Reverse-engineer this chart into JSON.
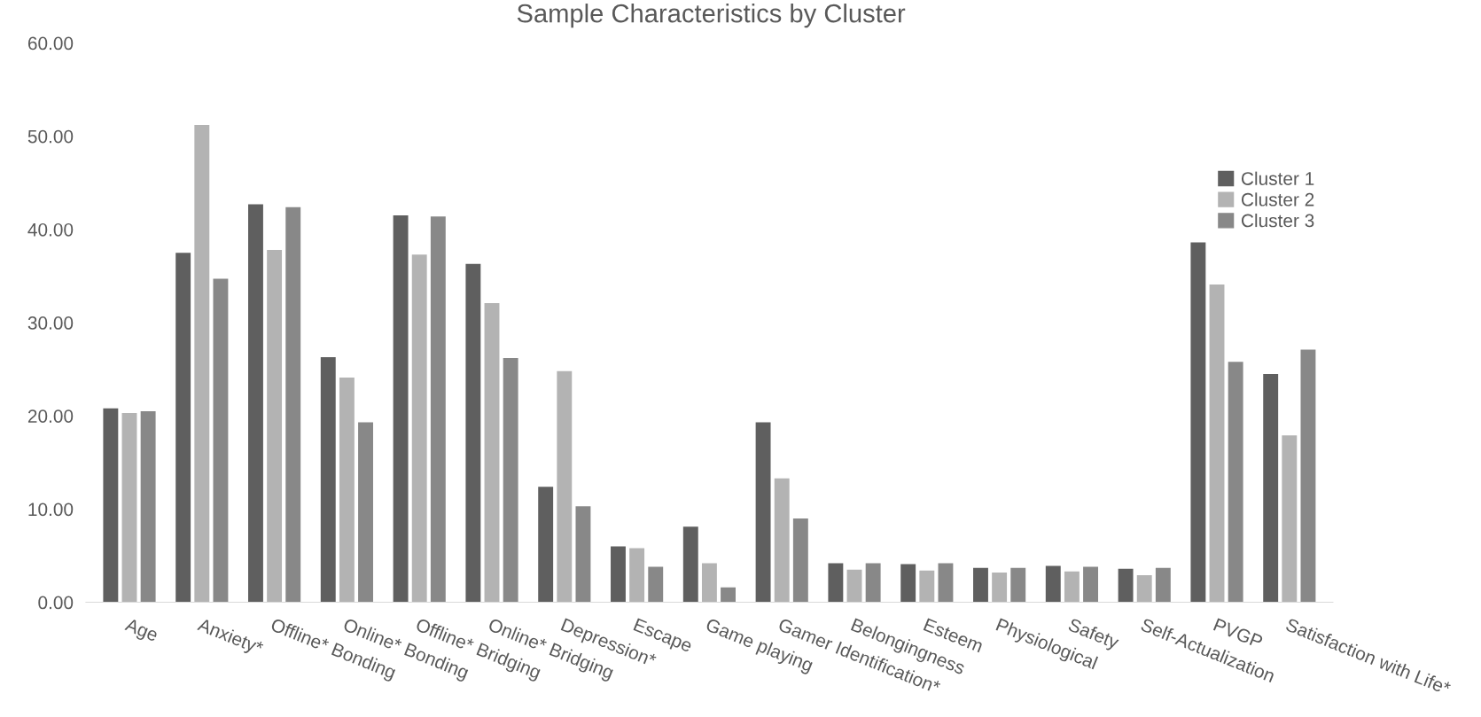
{
  "chart_data": {
    "type": "bar",
    "title": "Sample Characteristics by Cluster",
    "categories": [
      "Age",
      "Anxiety*",
      "Offline* Bonding",
      "Online* Bonding",
      "Offline* Bridging",
      "Online* Bridging",
      "Depression*",
      "Escape",
      "Game playing",
      "Gamer Identification*",
      "Belongingness",
      "Esteem",
      "Physiological",
      "Safety",
      "Self-Actualization",
      "PVGP",
      "Satisfaction with Life*"
    ],
    "series": [
      {
        "name": "Cluster 1",
        "color": "#5f5f5f",
        "values": [
          20.8,
          37.5,
          42.7,
          26.3,
          41.5,
          36.3,
          12.4,
          6.0,
          8.1,
          19.3,
          4.2,
          4.1,
          3.7,
          3.9,
          3.6,
          38.6,
          24.5
        ]
      },
      {
        "name": "Cluster 2",
        "color": "#b3b3b3",
        "values": [
          20.3,
          51.2,
          37.8,
          24.1,
          37.3,
          32.1,
          24.8,
          5.8,
          4.2,
          13.3,
          3.5,
          3.4,
          3.2,
          3.3,
          2.9,
          34.1,
          17.9
        ]
      },
      {
        "name": "Cluster 3",
        "color": "#888888",
        "values": [
          20.5,
          34.7,
          42.4,
          19.3,
          41.4,
          26.2,
          10.3,
          3.8,
          1.6,
          9.0,
          4.2,
          4.2,
          3.7,
          3.8,
          3.7,
          25.8,
          27.1
        ]
      }
    ],
    "ylim": [
      0,
      60
    ],
    "yticks": [
      {
        "value": 0,
        "label": "0.00"
      },
      {
        "value": 10,
        "label": "10.00"
      },
      {
        "value": 20,
        "label": "20.00"
      },
      {
        "value": 30,
        "label": "30.00"
      },
      {
        "value": 40,
        "label": "40.00"
      },
      {
        "value": 50,
        "label": "50.00"
      },
      {
        "value": 60,
        "label": "60.00"
      }
    ],
    "legend": "right",
    "grid": false
  }
}
